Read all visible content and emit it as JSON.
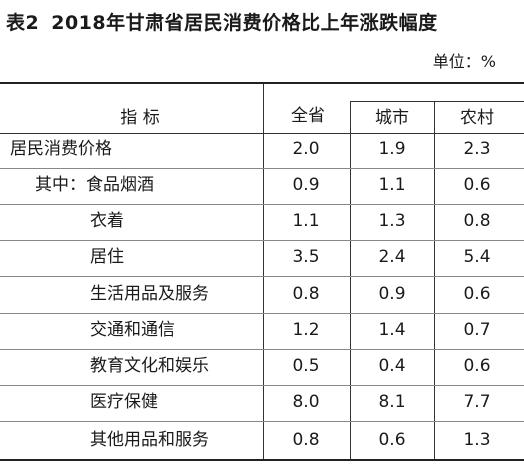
{
  "title_num": "表2",
  "title_text": "2018年甘肃省居民消费价格比上年涨跌幅度",
  "unit": "单位：%",
  "headers": {
    "indicator": "指  标",
    "province": "全省",
    "city": "城市",
    "rural": "农村"
  },
  "rows": [
    {
      "label": "居民消费价格",
      "province": "2.0",
      "city": "1.9",
      "rural": "2.3"
    },
    {
      "label": "其中：食品烟酒",
      "province": "0.9",
      "city": "1.1",
      "rural": "0.6"
    },
    {
      "label": "衣着",
      "province": "1.1",
      "city": "1.3",
      "rural": "0.8"
    },
    {
      "label": "居住",
      "province": "3.5",
      "city": "2.4",
      "rural": "5.4"
    },
    {
      "label": "生活用品及服务",
      "province": "0.8",
      "city": "0.9",
      "rural": "0.6"
    },
    {
      "label": "交通和通信",
      "province": "1.2",
      "city": "1.4",
      "rural": "0.7"
    },
    {
      "label": "教育文化和娱乐",
      "province": "0.5",
      "city": "0.4",
      "rural": "0.6"
    },
    {
      "label": "医疗保健",
      "province": "8.0",
      "city": "8.1",
      "rural": "7.7"
    },
    {
      "label": "其他用品和服务",
      "province": "0.8",
      "city": "0.6",
      "rural": "1.3"
    }
  ]
}
